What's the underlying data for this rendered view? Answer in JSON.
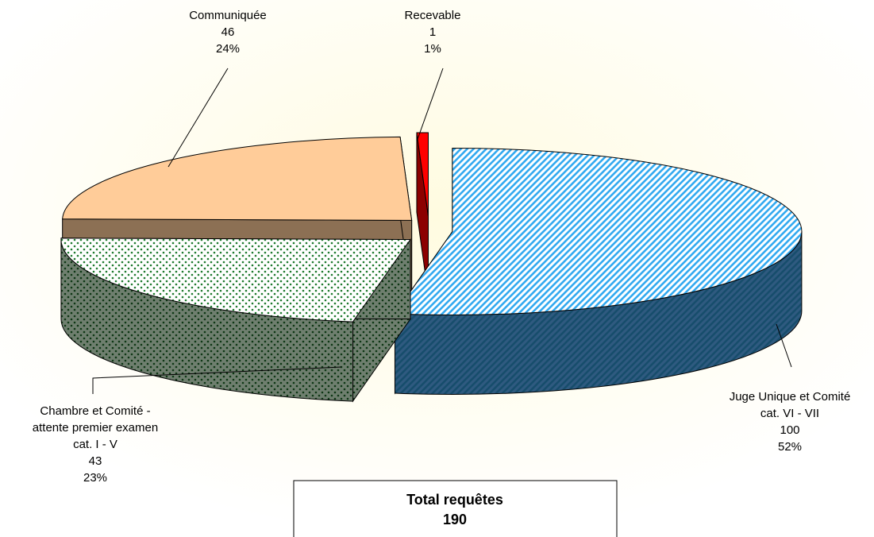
{
  "chart_data": {
    "type": "pie3d",
    "categories": [
      [
        "Juge Unique et Comité",
        "cat. VI - VII"
      ],
      [
        "Chambre et Comité -",
        "attente premier examen",
        "cat. I - V"
      ],
      [
        "Communiquée"
      ],
      [
        "Recevable"
      ]
    ],
    "values": [
      100,
      43,
      46,
      1
    ],
    "percent_labels": [
      "52%",
      "23%",
      "24%",
      "1%"
    ],
    "colors": [
      "#33aaf0",
      "#1e7a2e",
      "#ffcc99",
      "#ff0000"
    ],
    "fill_styles": [
      "stripes",
      "dots",
      "solid",
      "solid"
    ],
    "total": {
      "label": "Total requêtes",
      "value": 190
    }
  }
}
